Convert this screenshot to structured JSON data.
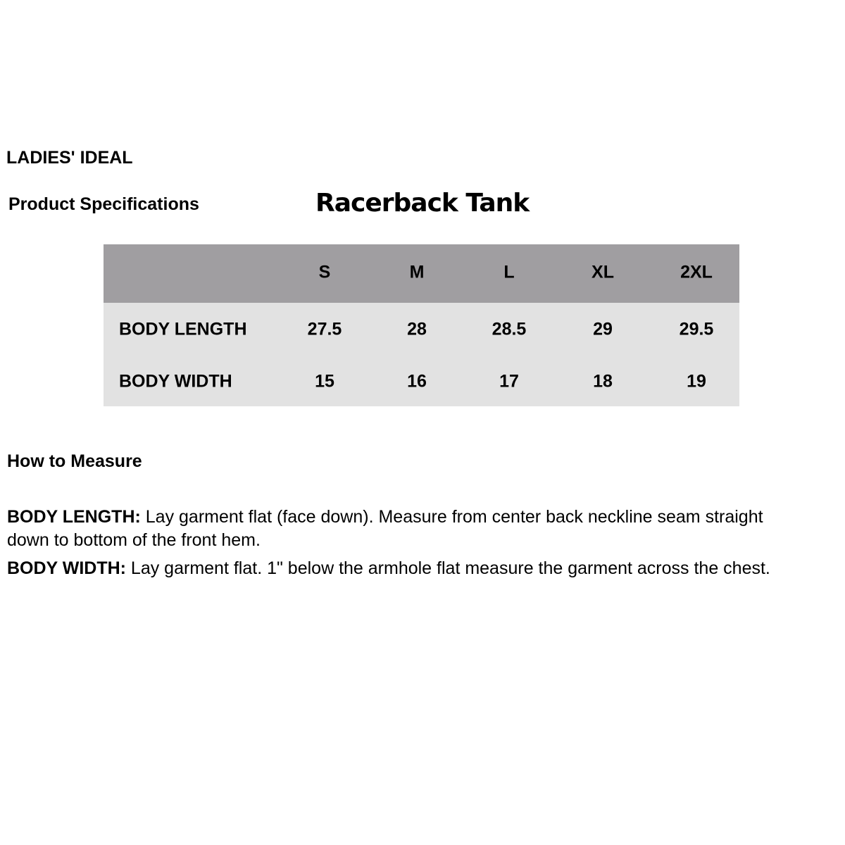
{
  "brand": "LADIES' IDEAL",
  "section_label": "Product Specifications",
  "product_title": "Racerback Tank",
  "colors": {
    "header_bg": "#a09ea1",
    "body_bg": "#e2e2e2"
  },
  "table": {
    "columns": [
      "S",
      "M",
      "L",
      "XL",
      "2XL"
    ],
    "rows": [
      {
        "label": "BODY LENGTH",
        "values": [
          "27.5",
          "28",
          "28.5",
          "29",
          "29.5"
        ]
      },
      {
        "label": "BODY WIDTH",
        "values": [
          "15",
          "16",
          "17",
          "18",
          "19"
        ]
      }
    ]
  },
  "how_to": {
    "heading": "How to Measure",
    "items": [
      {
        "label": "BODY LENGTH:",
        "line1": " Lay garment flat (face down). Measure from center back neckline seam straight",
        "line2": "down to bottom of the front hem."
      },
      {
        "label": "BODY WIDTH:",
        "line1": " Lay garment flat. 1\" below the armhole flat measure the garment across the chest."
      }
    ]
  }
}
